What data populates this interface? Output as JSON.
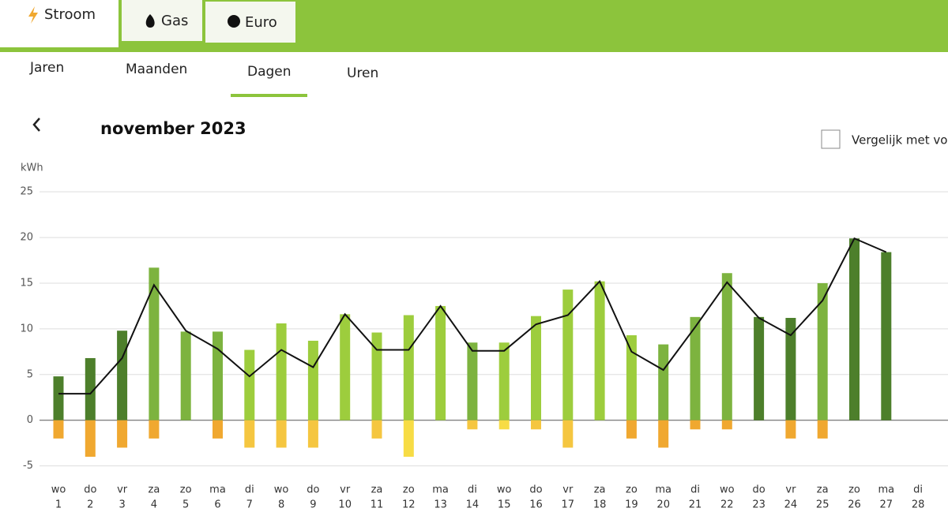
{
  "tabs": [
    "Stroom",
    "Gas",
    "Euro"
  ],
  "subtabs": [
    "Jaren",
    "Maanden",
    "Dagen",
    "Uren"
  ],
  "period": "november 2023",
  "compare": "Vergelijk met vo",
  "chart_data": {
    "type": "bar",
    "y_label": "kWh",
    "categories": [
      "wo",
      "do",
      "vr",
      "za",
      "zo",
      "ma",
      "di",
      "wo",
      "do",
      "vr",
      "za",
      "zo",
      "ma",
      "di",
      "wo",
      "do",
      "vr",
      "za",
      "zo",
      "ma",
      "di",
      "wo",
      "do",
      "vr",
      "za",
      "zo",
      "ma",
      "di"
    ],
    "days": [
      "1",
      "2",
      "3",
      "4",
      "5",
      "6",
      "7",
      "8",
      "9",
      "10",
      "11",
      "12",
      "13",
      "14",
      "15",
      "16",
      "17",
      "18",
      "19",
      "20",
      "21",
      "22",
      "23",
      "24",
      "25",
      "26",
      "27",
      "28"
    ],
    "ylim": [
      -6.5,
      27
    ],
    "yticks": [
      -5,
      0,
      5,
      10,
      15,
      20,
      25
    ],
    "grid": true,
    "series": [
      {
        "type": "bar",
        "colors": [
          "#4d7f2b",
          "#4d7f2b",
          "#4d7f2b",
          "#7db33f",
          "#7db33f",
          "#7db33f",
          "#9dcd3d",
          "#9dcd3d",
          "#9dcd3d",
          "#9dcd3d",
          "#9dcd3d",
          "#9dcd3d",
          "#9dcd3d",
          "#7db33f",
          "#9dcd3d",
          "#9dcd3d",
          "#9dcd3d",
          "#9dcd3d",
          "#9dcd3d",
          "#7db33f",
          "#7db33f",
          "#7db33f",
          "#4d7f2b",
          "#4d7f2b",
          "#7db33f",
          "#4d7f2b",
          "#4d7f2b",
          null
        ],
        "values": [
          4.8,
          6.8,
          9.8,
          16.7,
          9.7,
          9.7,
          7.7,
          10.6,
          8.7,
          11.6,
          9.6,
          11.5,
          12.5,
          8.5,
          8.5,
          11.4,
          14.3,
          15.2,
          9.3,
          8.3,
          11.3,
          16.1,
          11.3,
          11.2,
          15.0,
          19.9,
          18.4,
          null
        ]
      },
      {
        "type": "bar",
        "colors": [
          "#f0a830",
          "#f0a830",
          "#f0a830",
          "#f0a830",
          "#f0a830",
          "#f0a830",
          "#f5c640",
          "#f5c640",
          "#f5c640",
          "#f5c640",
          "#f5c640",
          "#f7dc45",
          "#f7dc45",
          "#f5c640",
          "#f7dc45",
          "#f5c640",
          "#f5c640",
          "#f5c640",
          "#f0a830",
          "#f0a830",
          "#f0a830",
          "#f0a830",
          "#f0a830",
          "#f0a830",
          "#f0a830",
          "#f0a830",
          "#f0a830",
          null
        ],
        "values": [
          -2,
          -4,
          -3,
          -2,
          0,
          -2,
          -3,
          -3,
          -3,
          0,
          -2,
          -4,
          0,
          -1,
          -1,
          -1,
          -3,
          0,
          -2,
          -3,
          -1,
          -1,
          0,
          -2,
          -2,
          0,
          0,
          null
        ]
      },
      {
        "type": "line",
        "color": "#111111",
        "values": [
          2.9,
          2.9,
          6.8,
          14.8,
          9.8,
          7.8,
          4.8,
          7.7,
          5.8,
          11.6,
          7.7,
          7.7,
          12.5,
          7.6,
          7.6,
          10.5,
          11.5,
          15.2,
          7.5,
          5.5,
          10.2,
          15.1,
          11.2,
          9.3,
          13.1,
          19.9,
          18.4,
          null
        ]
      }
    ]
  }
}
